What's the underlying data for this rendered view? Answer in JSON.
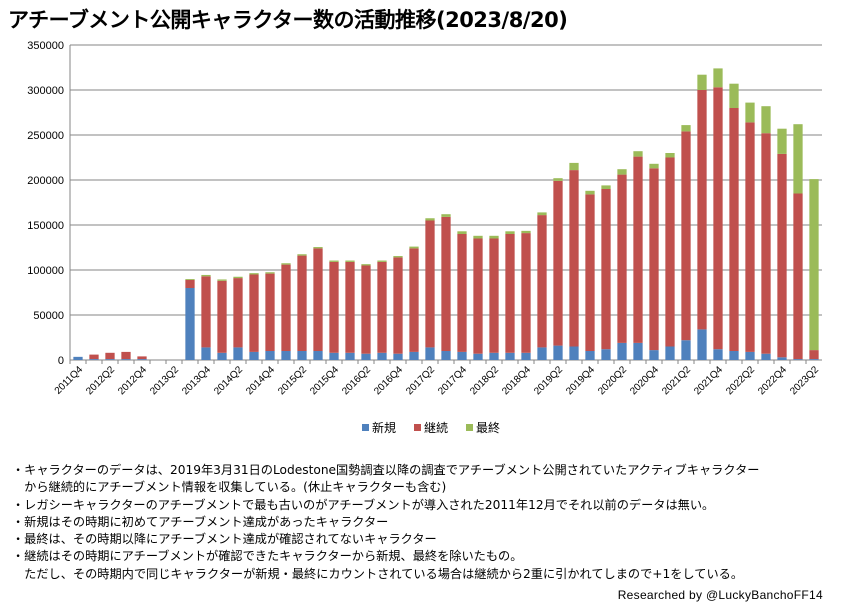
{
  "title": "アチーブメント公開キャラクター数の活動推移(2023/8/20)",
  "chart_data": {
    "type": "bar",
    "stacked": true,
    "title": "アチーブメント公開キャラクター数の活動推移(2023/8/20)",
    "ylim": [
      0,
      350000
    ],
    "yticks": [
      "0",
      "50000",
      "100000",
      "150000",
      "200000",
      "250000",
      "300000",
      "350000"
    ],
    "categories": [
      "2011Q4",
      "2012Q1",
      "2012Q2",
      "2012Q3",
      "2012Q4",
      "2013Q1",
      "2013Q2",
      "2013Q3",
      "2013Q4",
      "2014Q1",
      "2014Q2",
      "2014Q3",
      "2014Q4",
      "2015Q1",
      "2015Q2",
      "2015Q3",
      "2015Q4",
      "2016Q1",
      "2016Q2",
      "2016Q3",
      "2016Q4",
      "2017Q1",
      "2017Q2",
      "2017Q3",
      "2017Q4",
      "2018Q1",
      "2018Q2",
      "2018Q3",
      "2018Q4",
      "2019Q1",
      "2019Q2",
      "2019Q3",
      "2019Q4",
      "2020Q1",
      "2020Q2",
      "2020Q3",
      "2020Q4",
      "2021Q1",
      "2021Q2",
      "2021Q3",
      "2021Q4",
      "2022Q1",
      "2022Q2",
      "2022Q3",
      "2022Q4",
      "2023Q1",
      "2023Q2"
    ],
    "xtick_labels": [
      "2011Q4",
      "2012Q2",
      "2012Q4",
      "2013Q2",
      "2013Q4",
      "2014Q2",
      "2014Q4",
      "2015Q2",
      "2015Q4",
      "2016Q2",
      "2016Q4",
      "2017Q2",
      "2017Q4",
      "2018Q2",
      "2018Q4",
      "2019Q2",
      "2019Q4",
      "2020Q2",
      "2020Q4",
      "2021Q2",
      "2021Q4",
      "2022Q2",
      "2022Q4",
      "2023Q2"
    ],
    "series": [
      {
        "name": "新規",
        "color": "#4F81BD",
        "values": [
          3500,
          1000,
          1000,
          1000,
          1000,
          0,
          0,
          80000,
          14000,
          8000,
          14000,
          9000,
          10000,
          10000,
          10000,
          10000,
          8000,
          8000,
          7000,
          8000,
          7000,
          9000,
          14000,
          10000,
          9000,
          7000,
          8000,
          8000,
          8000,
          14000,
          16000,
          15000,
          10000,
          12000,
          19000,
          19000,
          11000,
          15000,
          22000,
          34000,
          12000,
          10000,
          9000,
          7000,
          3000,
          1000,
          1000
        ]
      },
      {
        "name": "継続",
        "color": "#C0504D",
        "values": [
          0,
          5000,
          7000,
          8000,
          3000,
          0,
          0,
          9000,
          79000,
          80000,
          77000,
          86000,
          86000,
          96000,
          106000,
          114000,
          101000,
          101000,
          98000,
          101000,
          107000,
          115000,
          141000,
          149000,
          131000,
          128000,
          127000,
          132000,
          133000,
          147000,
          183000,
          196000,
          174000,
          178000,
          187000,
          207000,
          202000,
          210000,
          232000,
          266000,
          291000,
          270000,
          255000,
          245000,
          226000,
          184000,
          10000
        ]
      },
      {
        "name": "最終",
        "color": "#9BBB59",
        "values": [
          0,
          0,
          0,
          0,
          0,
          0,
          0,
          1000,
          1500,
          1500,
          1500,
          1500,
          1500,
          1500,
          1500,
          1500,
          1500,
          1500,
          1500,
          1500,
          1500,
          2000,
          2500,
          3000,
          3000,
          3000,
          3000,
          3000,
          2500,
          3000,
          3000,
          8000,
          4000,
          4000,
          6000,
          6000,
          5000,
          5000,
          7000,
          17000,
          21000,
          27000,
          22000,
          30000,
          28000,
          77000,
          190000
        ]
      }
    ]
  },
  "notes": [
    "・キャラクターのデータは、2019年3月31日のLodestone国勢調査以降の調査でアチーブメント公開されていたアクティブキャラクター",
    "　から継続的にアチーブメント情報を収集している。(休止キャラクターも含む)",
    "・レガシーキャラクターのアチーブメントで最も古いのがアチーブメントが導入された2011年12月でそれ以前のデータは無い。",
    "・新規はその時期に初めてアチーブメント達成があったキャラクター",
    "・最終は、その時期以降にアチーブメント達成が確認されてないキャラクター",
    "・継続はその時期にアチーブメントが確認できたキャラクターから新規、最終を除いたもの。",
    "　ただし、その時期内で同じキャラクターが新規・最終にカウントされている場合は継続から2重に引かれてしまので+1をしている。"
  ],
  "credit": "Researched by @LuckyBanchoFF14"
}
